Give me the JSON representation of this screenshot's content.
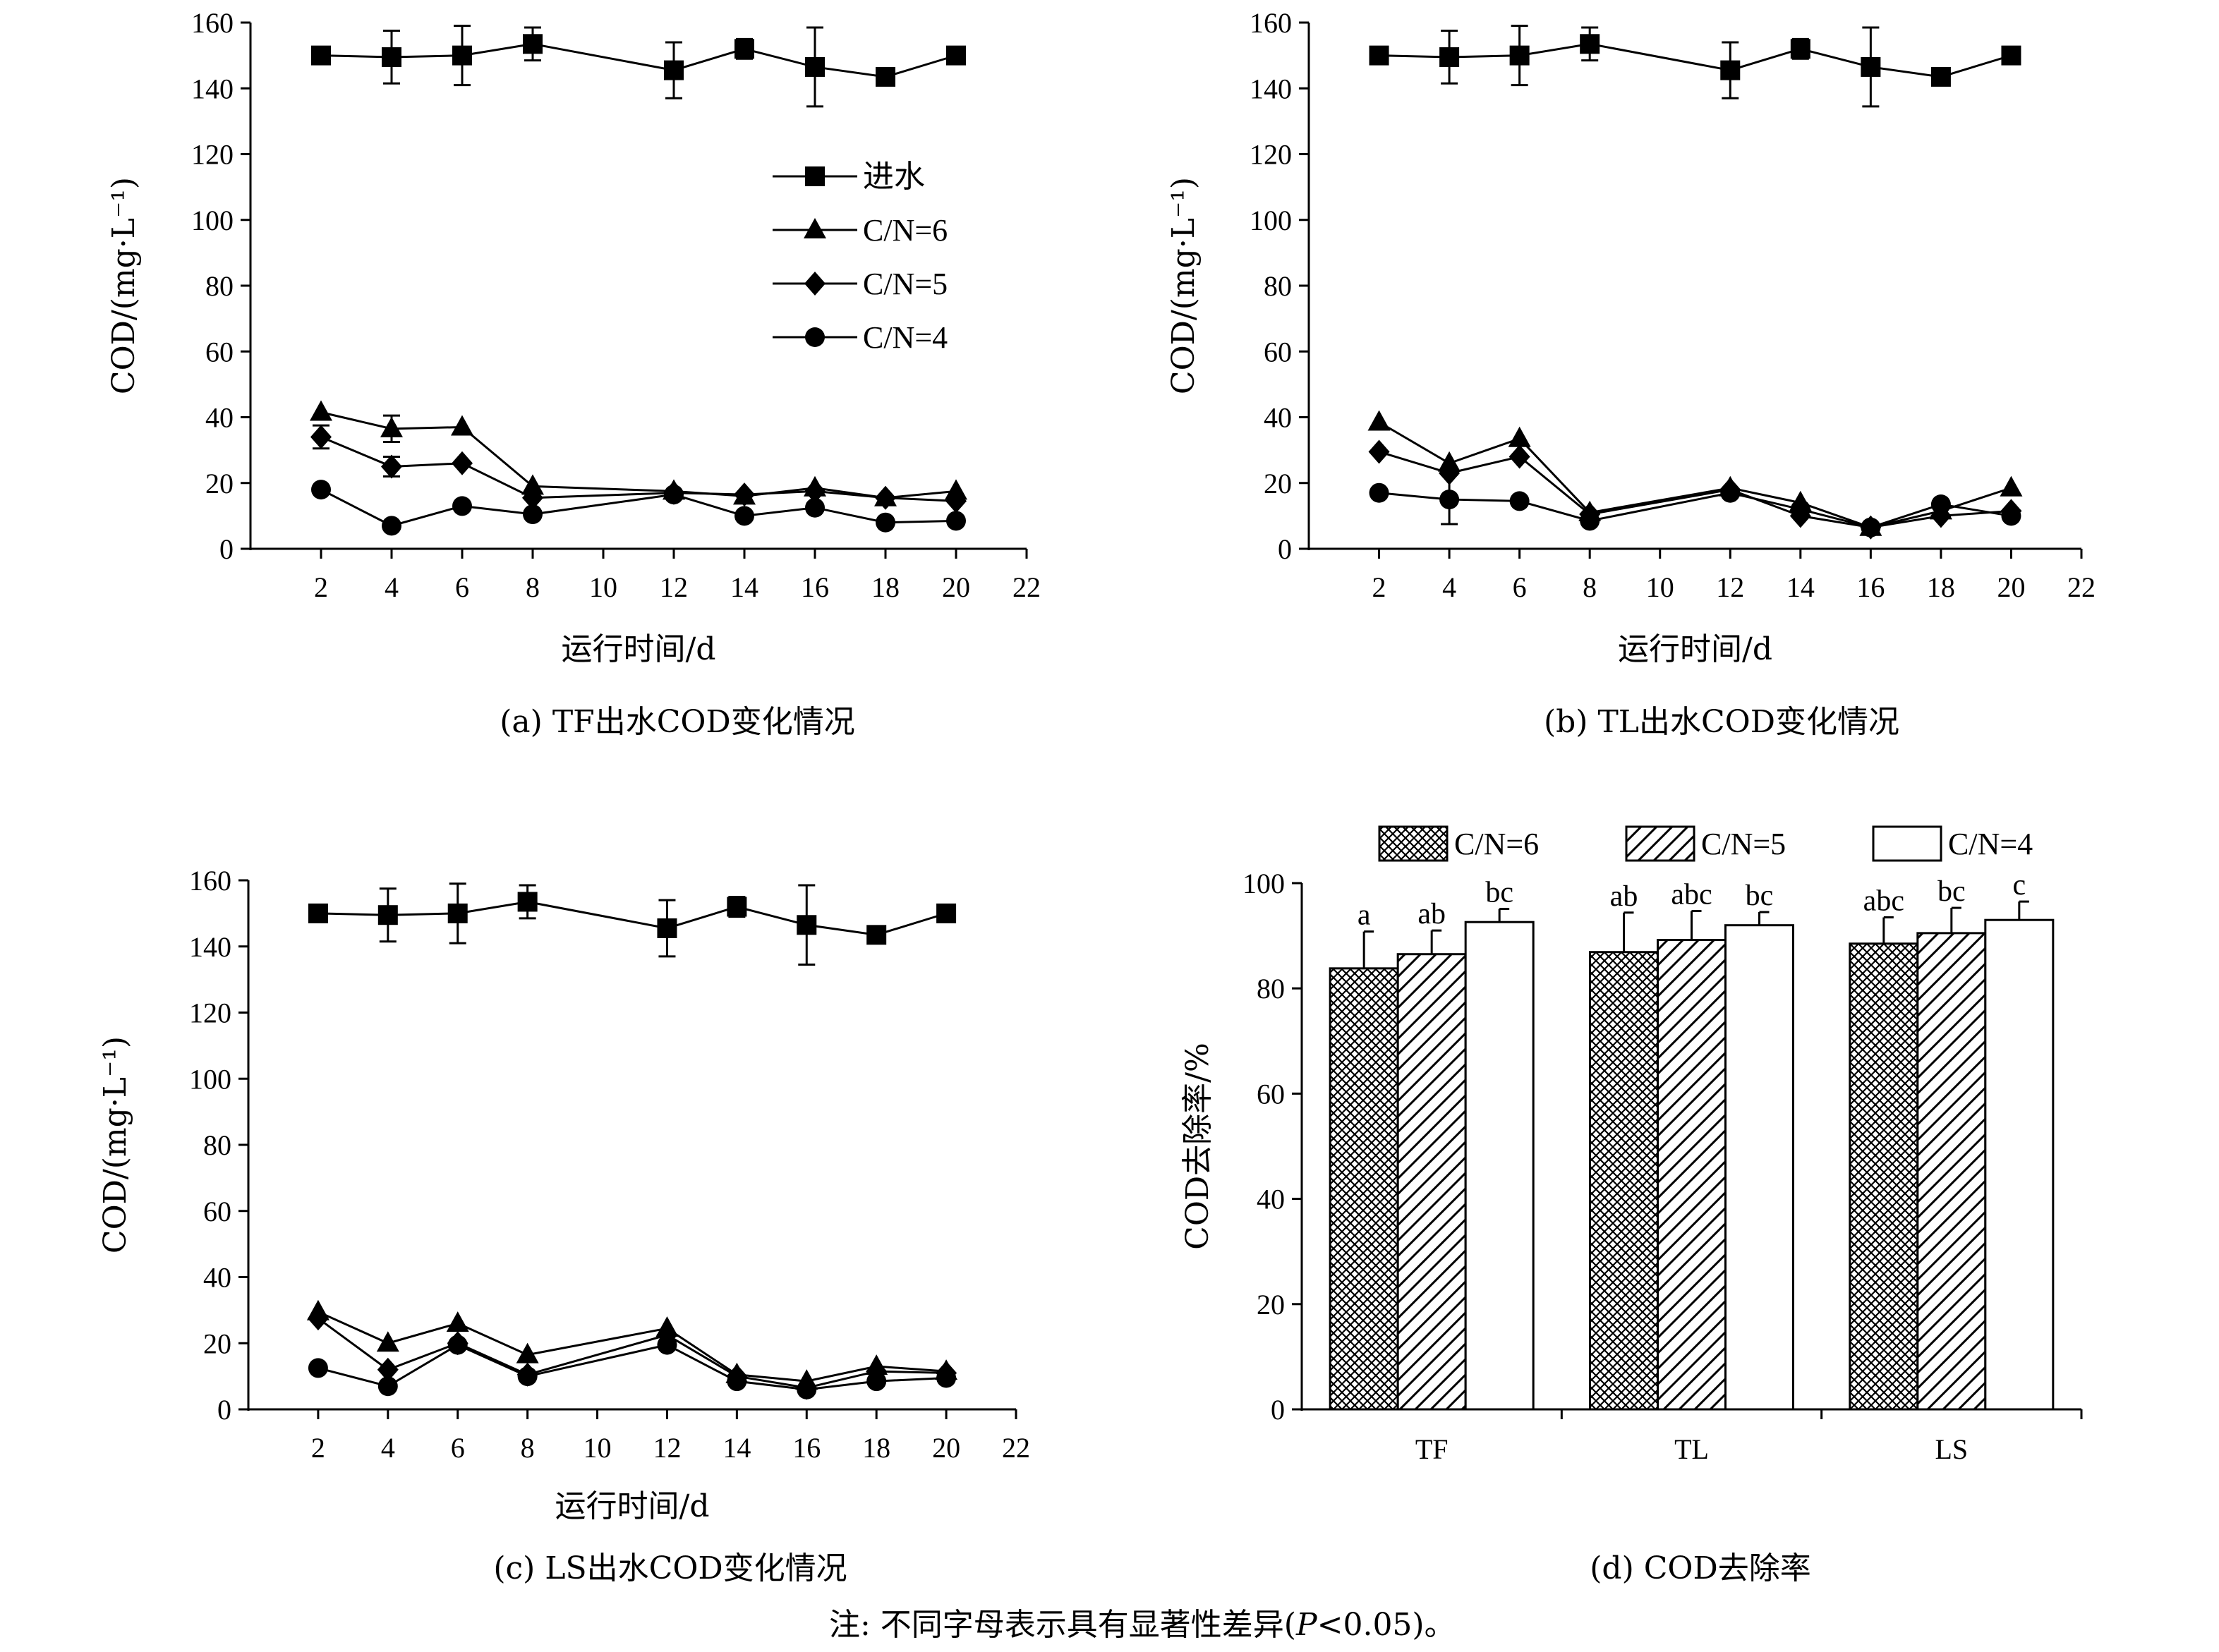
{
  "note": {
    "prefix": "注: 不同字母表示具有显著性差异(",
    "p": "P",
    "suffix": "<0.05)。"
  },
  "colors": {
    "ink": "#000000",
    "bar_fill": "#ffffff"
  },
  "chart_data": [
    {
      "id": "a",
      "type": "line",
      "caption": "(a) TF出水COD变化情况",
      "xlabel": "运行时间/d",
      "ylabel": "COD/(mg·L⁻¹)",
      "xlim": [
        0,
        22
      ],
      "ylim": [
        0,
        160
      ],
      "xticks": [
        2,
        4,
        6,
        8,
        10,
        12,
        14,
        16,
        18,
        20,
        22
      ],
      "yticks": [
        0,
        20,
        40,
        60,
        80,
        100,
        120,
        140,
        160
      ],
      "legend": {
        "position": "upper-right",
        "show": true
      },
      "x": [
        2,
        4,
        6,
        8,
        12,
        14,
        16,
        18,
        20
      ],
      "series": [
        {
          "name": "进水",
          "marker": "square",
          "values": [
            150,
            149.5,
            150,
            153.5,
            145.5,
            152,
            146.5,
            143.5,
            150
          ],
          "errors": [
            1,
            8,
            9,
            5,
            8.5,
            3,
            12,
            2,
            2.5
          ]
        },
        {
          "name": "C/N=6",
          "marker": "triangle",
          "values": [
            41.5,
            36.5,
            37,
            19,
            17.5,
            16,
            18.5,
            15.5,
            17.5
          ],
          "errors": [
            1,
            4,
            1,
            1,
            1,
            1,
            1,
            1,
            1
          ]
        },
        {
          "name": "C/N=5",
          "marker": "diamond",
          "values": [
            34,
            25,
            26,
            15.5,
            17,
            16.5,
            17.5,
            15.5,
            14.5
          ],
          "errors": [
            3.5,
            3,
            1,
            1,
            1,
            1,
            1,
            1,
            1
          ]
        },
        {
          "name": "C/N=4",
          "marker": "circle",
          "values": [
            18,
            7,
            13,
            10.5,
            16.5,
            10,
            12.5,
            8,
            8.5
          ],
          "errors": [
            1,
            1,
            1,
            1,
            1,
            1,
            1,
            1,
            1
          ]
        }
      ]
    },
    {
      "id": "b",
      "type": "line",
      "caption": "(b) TL出水COD变化情况",
      "xlabel": "运行时间/d",
      "ylabel": "COD/(mg·L⁻¹)",
      "xlim": [
        0,
        22
      ],
      "ylim": [
        0,
        160
      ],
      "xticks": [
        2,
        4,
        6,
        8,
        10,
        12,
        14,
        16,
        18,
        20,
        22
      ],
      "yticks": [
        0,
        20,
        40,
        60,
        80,
        100,
        120,
        140,
        160
      ],
      "legend": {
        "show": false
      },
      "x": [
        2,
        4,
        6,
        8,
        12,
        14,
        16,
        18,
        20
      ],
      "series": [
        {
          "name": "进水",
          "marker": "square",
          "values": [
            150,
            149.5,
            150,
            153.5,
            145.5,
            152,
            146.5,
            143.5,
            150
          ],
          "errors": [
            1,
            8,
            9,
            5,
            8.5,
            3,
            12,
            2,
            2.5
          ]
        },
        {
          "name": "C/N=6",
          "marker": "triangle",
          "values": [
            38.5,
            26,
            33.5,
            11,
            18.5,
            14,
            6.5,
            11.5,
            18.5
          ],
          "errors": [
            1,
            1,
            1,
            1,
            1,
            1,
            1,
            1,
            1
          ]
        },
        {
          "name": "C/N=5",
          "marker": "diamond",
          "values": [
            29.5,
            23,
            28,
            10.5,
            18,
            10,
            6.5,
            10,
            11.5
          ],
          "errors": [
            1,
            1,
            1,
            1,
            1,
            1,
            1,
            1,
            1
          ]
        },
        {
          "name": "C/N=4",
          "marker": "circle",
          "values": [
            17,
            15,
            14.5,
            8.5,
            17,
            12,
            6.5,
            13.5,
            10
          ],
          "errors": [
            1,
            7.5,
            1,
            1,
            1,
            1,
            1,
            1,
            1
          ]
        }
      ]
    },
    {
      "id": "c",
      "type": "line",
      "caption": "(c) LS出水COD变化情况",
      "xlabel": "运行时间/d",
      "ylabel": "COD/(mg·L⁻¹)",
      "xlim": [
        0,
        22
      ],
      "ylim": [
        0,
        160
      ],
      "xticks": [
        2,
        4,
        6,
        8,
        10,
        12,
        14,
        16,
        18,
        20,
        22
      ],
      "yticks": [
        0,
        20,
        40,
        60,
        80,
        100,
        120,
        140,
        160
      ],
      "legend": {
        "show": false
      },
      "x": [
        2,
        4,
        6,
        8,
        12,
        14,
        16,
        18,
        20
      ],
      "series": [
        {
          "name": "进水",
          "marker": "square",
          "values": [
            150,
            149.5,
            150,
            153.5,
            145.5,
            152,
            146.5,
            143.5,
            150
          ],
          "errors": [
            1,
            8,
            9,
            5,
            8.5,
            3,
            12,
            2,
            2.5
          ]
        },
        {
          "name": "C/N=6",
          "marker": "triangle",
          "values": [
            29.5,
            20,
            26,
            16.5,
            24.5,
            10.5,
            8.5,
            13,
            11.5
          ],
          "errors": [
            1,
            1,
            1,
            1,
            1,
            1,
            1,
            1,
            1
          ]
        },
        {
          "name": "C/N=5",
          "marker": "diamond",
          "values": [
            27.5,
            12,
            20,
            10.5,
            22.5,
            10,
            6.5,
            11.5,
            11
          ],
          "errors": [
            1,
            1,
            1,
            1,
            1,
            1,
            1,
            1,
            1
          ]
        },
        {
          "name": "C/N=4",
          "marker": "circle",
          "values": [
            12.5,
            7,
            19.5,
            10,
            19.5,
            8.5,
            6,
            8.5,
            9.5
          ],
          "errors": [
            1,
            1,
            1,
            1,
            1,
            1,
            1,
            1,
            1
          ]
        }
      ]
    },
    {
      "id": "d",
      "type": "bar",
      "caption": "(d) COD去除率",
      "xlabel": "",
      "ylabel": "COD去除率/%",
      "ylim": [
        0,
        100
      ],
      "yticks": [
        0,
        20,
        40,
        60,
        80,
        100
      ],
      "categories": [
        "TF",
        "TL",
        "LS"
      ],
      "legend": {
        "position": "top",
        "show": true
      },
      "series": [
        {
          "name": "C/N=6",
          "pattern": "crosshatch",
          "values": [
            83.8,
            86.9,
            88.5
          ],
          "errors": [
            7,
            7.5,
            5
          ],
          "labels": [
            "a",
            "ab",
            "abc"
          ]
        },
        {
          "name": "C/N=5",
          "pattern": "diagonal",
          "values": [
            86.5,
            89.2,
            90.5
          ],
          "errors": [
            4.5,
            5.5,
            4.8
          ],
          "labels": [
            "ab",
            "abc",
            "bc"
          ]
        },
        {
          "name": "C/N=4",
          "pattern": "none",
          "values": [
            92.6,
            92.0,
            93.0
          ],
          "errors": [
            2.5,
            2.5,
            3.5
          ],
          "labels": [
            "bc",
            "bc",
            "c"
          ]
        }
      ]
    }
  ]
}
